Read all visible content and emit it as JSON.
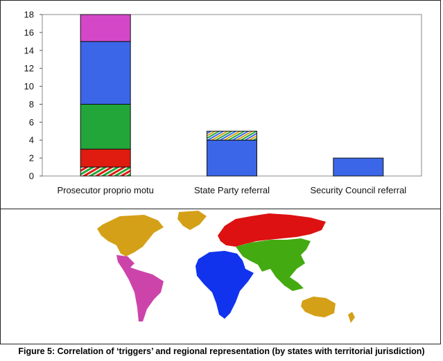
{
  "chart_data": {
    "type": "bar",
    "stacked": true,
    "categories": [
      "Prosecutor proprio motu",
      "State Party referral",
      "Security Council referral"
    ],
    "ylim": [
      0,
      18
    ],
    "yticks": [
      0,
      2,
      4,
      6,
      8,
      10,
      12,
      14,
      16,
      18
    ],
    "grid": false,
    "legend": "none",
    "segments": [
      {
        "category": "Prosecutor proprio motu",
        "from": 0,
        "to": 1,
        "fill": "hatch-rgw"
      },
      {
        "category": "Prosecutor proprio motu",
        "from": 1,
        "to": 3,
        "fill": "#e01b0f"
      },
      {
        "category": "Prosecutor proprio motu",
        "from": 3,
        "to": 8,
        "fill": "#22a63a"
      },
      {
        "category": "Prosecutor proprio motu",
        "from": 8,
        "to": 15,
        "fill": "#3b66e8"
      },
      {
        "category": "Prosecutor proprio motu",
        "from": 15,
        "to": 18,
        "fill": "#d448c8"
      },
      {
        "category": "State Party referral",
        "from": 0,
        "to": 4,
        "fill": "#3b66e8"
      },
      {
        "category": "State Party referral",
        "from": 4,
        "to": 5,
        "fill": "hatch-byg"
      },
      {
        "category": "Security Council referral",
        "from": 0,
        "to": 2,
        "fill": "#3b66e8"
      }
    ],
    "caption": "Figure 5: Correlation of ‘triggers’ and regional representation (by states with territorial jurisdiction)"
  },
  "map": {
    "colors": {
      "americas_north": "#d4a017",
      "americas_latin": "#cc44aa",
      "europe_russia": "#dd1111",
      "africa": "#1133ee",
      "asia": "#44aa11",
      "oceania": "#d4a017"
    }
  }
}
